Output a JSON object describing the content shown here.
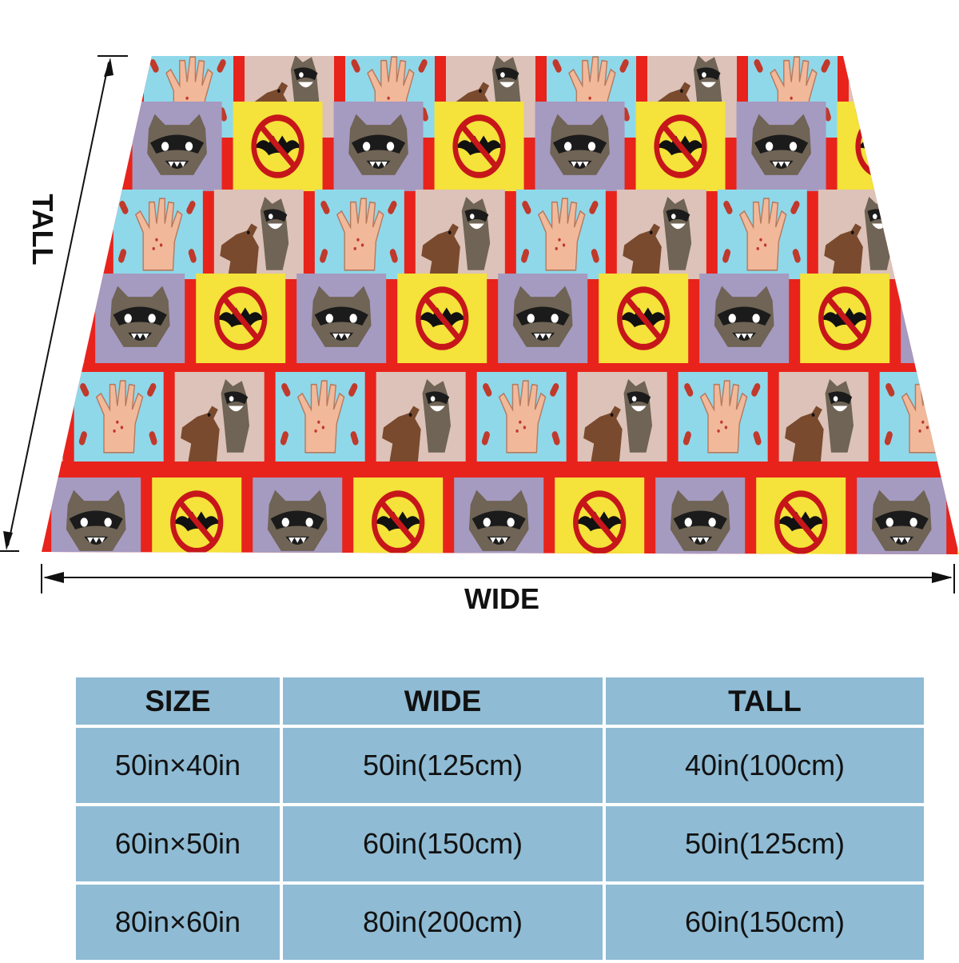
{
  "dimension_labels": {
    "tall": "TALL",
    "wide": "WIDE"
  },
  "blanket": {
    "border_color": "#e8231c",
    "tile_colors": {
      "hand_tile": "#8fd8ea",
      "raccoon_face_tile": "#a59ac0",
      "no_bat_tile": "#f5e23a",
      "raccoon_dog_tile": "#dcc2b8"
    }
  },
  "size_table": {
    "headers": [
      "SIZE",
      "WIDE",
      "TALL"
    ],
    "rows": [
      [
        "50in×40in",
        "50in(125cm)",
        "40in(100cm)"
      ],
      [
        "60in×50in",
        "60in(150cm)",
        "50in(125cm)"
      ],
      [
        "80in×60in",
        "80in(200cm)",
        "60in(150cm)"
      ]
    ]
  }
}
